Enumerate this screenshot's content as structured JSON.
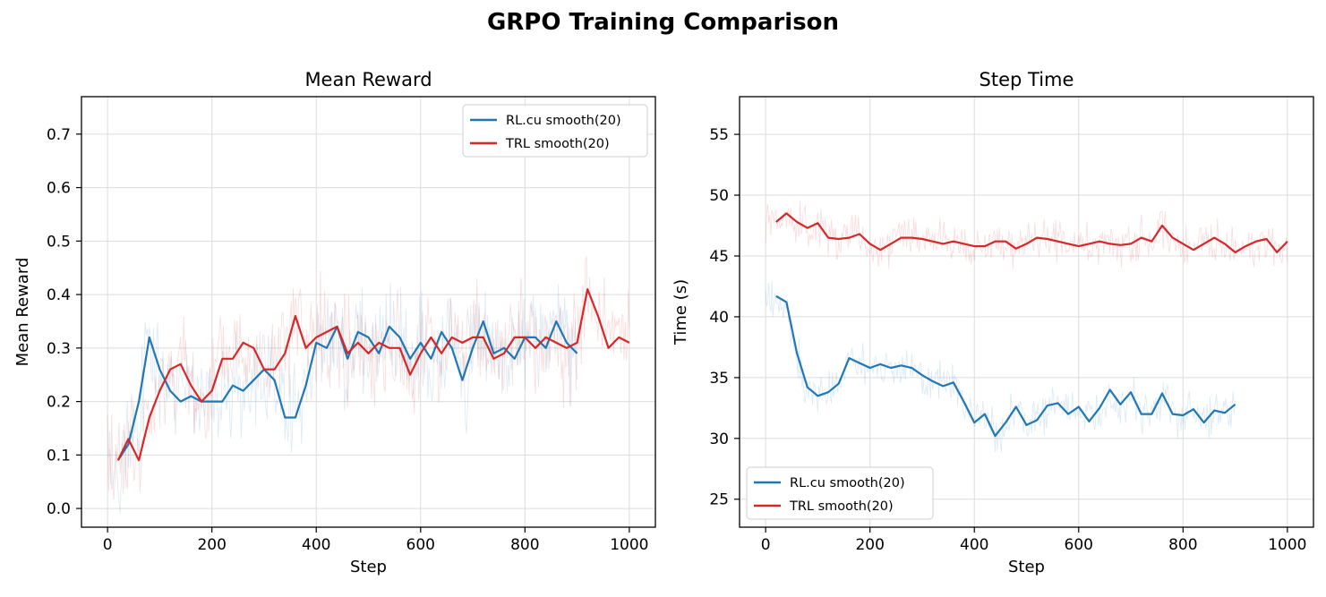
{
  "figure": {
    "title": "GRPO Training Comparison"
  },
  "colors": {
    "rlcu": "#1f77b4",
    "trl": "#d62728",
    "grid": "#e6e6e6"
  },
  "chart_data": [
    {
      "type": "line",
      "title": "Mean Reward",
      "xlabel": "Step",
      "ylabel": "Mean Reward",
      "xlim": [
        -50,
        1050
      ],
      "ylim": [
        -0.035,
        0.77
      ],
      "xticks": [
        0,
        200,
        400,
        600,
        800,
        1000
      ],
      "yticks": [
        0.0,
        0.1,
        0.2,
        0.3,
        0.4,
        0.5,
        0.6,
        0.7
      ],
      "ytick_labels": [
        "0.0",
        "0.1",
        "0.2",
        "0.3",
        "0.4",
        "0.5",
        "0.6",
        "0.7"
      ],
      "grid": true,
      "legend_position": "top-right",
      "series": [
        {
          "name": "RL.cu smooth(20)",
          "color": "#1f77b4",
          "x": [
            20,
            40,
            60,
            80,
            100,
            120,
            140,
            160,
            180,
            200,
            220,
            240,
            260,
            280,
            300,
            320,
            340,
            360,
            380,
            400,
            420,
            440,
            460,
            480,
            500,
            520,
            540,
            560,
            580,
            600,
            620,
            640,
            660,
            680,
            700,
            720,
            740,
            760,
            780,
            800,
            820,
            840,
            860,
            880,
            900
          ],
          "y": [
            0.09,
            0.12,
            0.2,
            0.32,
            0.26,
            0.22,
            0.2,
            0.21,
            0.2,
            0.2,
            0.2,
            0.23,
            0.22,
            0.24,
            0.26,
            0.24,
            0.17,
            0.17,
            0.23,
            0.31,
            0.3,
            0.34,
            0.28,
            0.33,
            0.32,
            0.29,
            0.34,
            0.32,
            0.28,
            0.31,
            0.28,
            0.33,
            0.3,
            0.24,
            0.3,
            0.35,
            0.29,
            0.3,
            0.28,
            0.32,
            0.32,
            0.3,
            0.35,
            0.31,
            0.29
          ]
        },
        {
          "name": "TRL smooth(20)",
          "color": "#d62728",
          "x": [
            20,
            40,
            60,
            80,
            100,
            120,
            140,
            160,
            180,
            200,
            220,
            240,
            260,
            280,
            300,
            320,
            340,
            360,
            380,
            400,
            420,
            440,
            460,
            480,
            500,
            520,
            540,
            560,
            580,
            600,
            620,
            640,
            660,
            680,
            700,
            720,
            740,
            760,
            780,
            800,
            820,
            840,
            860,
            880,
            900,
            920,
            940,
            960,
            980,
            1000
          ],
          "y": [
            0.09,
            0.13,
            0.09,
            0.17,
            0.22,
            0.26,
            0.27,
            0.23,
            0.2,
            0.22,
            0.28,
            0.28,
            0.31,
            0.3,
            0.26,
            0.26,
            0.29,
            0.36,
            0.3,
            0.32,
            0.33,
            0.34,
            0.29,
            0.31,
            0.29,
            0.31,
            0.3,
            0.3,
            0.25,
            0.29,
            0.32,
            0.29,
            0.32,
            0.31,
            0.32,
            0.32,
            0.28,
            0.29,
            0.32,
            0.32,
            0.3,
            0.32,
            0.31,
            0.3,
            0.31,
            0.41,
            0.36,
            0.3,
            0.32,
            0.31
          ]
        }
      ]
    },
    {
      "type": "line",
      "title": "Step Time",
      "xlabel": "Step",
      "ylabel": "Time (s)",
      "xlim": [
        -50,
        1050
      ],
      "ylim": [
        22.7,
        58.1
      ],
      "xticks": [
        0,
        200,
        400,
        600,
        800,
        1000
      ],
      "yticks": [
        25,
        30,
        35,
        40,
        45,
        50,
        55
      ],
      "ytick_labels": [
        "25",
        "30",
        "35",
        "40",
        "45",
        "50",
        "55"
      ],
      "grid": true,
      "legend_position": "bottom-left",
      "series": [
        {
          "name": "RL.cu smooth(20)",
          "color": "#1f77b4",
          "x": [
            20,
            40,
            60,
            80,
            100,
            120,
            140,
            160,
            180,
            200,
            220,
            240,
            260,
            280,
            300,
            320,
            340,
            360,
            380,
            400,
            420,
            440,
            460,
            480,
            500,
            520,
            540,
            560,
            580,
            600,
            620,
            640,
            660,
            680,
            700,
            720,
            740,
            760,
            780,
            800,
            820,
            840,
            860,
            880,
            900
          ],
          "y": [
            41.7,
            41.2,
            37.0,
            34.2,
            33.5,
            33.8,
            34.5,
            36.6,
            36.2,
            35.8,
            36.1,
            35.8,
            36.0,
            35.8,
            35.2,
            34.7,
            34.3,
            34.6,
            33.0,
            31.3,
            32.0,
            30.2,
            31.3,
            32.6,
            31.1,
            31.5,
            32.7,
            32.9,
            32.0,
            32.6,
            31.4,
            32.5,
            34.0,
            32.8,
            33.8,
            32.0,
            32.0,
            33.7,
            32.0,
            31.9,
            32.4,
            31.3,
            32.3,
            32.1,
            32.8
          ]
        },
        {
          "name": "TRL smooth(20)",
          "color": "#d62728",
          "x": [
            20,
            40,
            60,
            80,
            100,
            120,
            140,
            160,
            180,
            200,
            220,
            240,
            260,
            280,
            300,
            320,
            340,
            360,
            380,
            400,
            420,
            440,
            460,
            480,
            500,
            520,
            540,
            560,
            580,
            600,
            620,
            640,
            660,
            680,
            700,
            720,
            740,
            760,
            780,
            800,
            820,
            840,
            860,
            880,
            900,
            920,
            940,
            960,
            980,
            1000
          ],
          "y": [
            47.8,
            48.5,
            47.8,
            47.3,
            47.7,
            46.5,
            46.4,
            46.5,
            46.8,
            46.0,
            45.5,
            46.0,
            46.5,
            46.5,
            46.4,
            46.2,
            46.0,
            46.2,
            46.0,
            45.8,
            45.8,
            46.2,
            46.2,
            45.6,
            46.0,
            46.5,
            46.4,
            46.2,
            46.0,
            45.8,
            46.0,
            46.2,
            46.0,
            45.9,
            46.0,
            46.5,
            46.2,
            47.5,
            46.5,
            46.0,
            45.5,
            46.0,
            46.5,
            46.0,
            45.3,
            45.8,
            46.2,
            46.4,
            45.3,
            46.2
          ]
        }
      ]
    }
  ]
}
